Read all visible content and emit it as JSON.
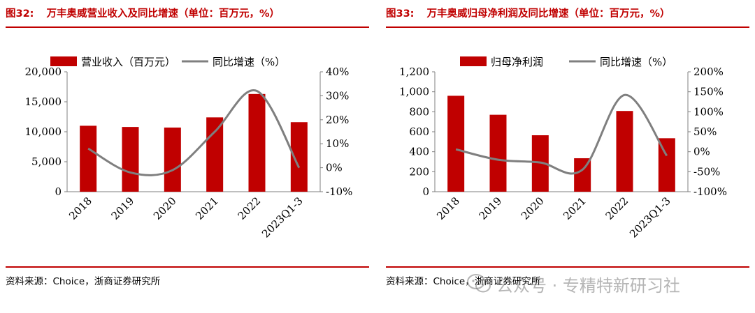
{
  "colors": {
    "bar": "#c00000",
    "line": "#7f7f7f",
    "accent": "#c00000"
  },
  "charts": [
    {
      "figure_number": "图32:",
      "figure_title": "万丰奥威营业收入及同比增速（单位：百万元，%）",
      "source": "资料来源：Choice，浙商证券研究所",
      "legend_bar": "营业收入（百万元）",
      "legend_line": "同比增速（%）",
      "left_ticks": [
        "0",
        "5,000",
        "10,000",
        "15,000",
        "20,000"
      ],
      "right_ticks": [
        "-10%",
        "0%",
        "10%",
        "20%",
        "30%",
        "40%"
      ]
    },
    {
      "figure_number": "图33:",
      "figure_title": "万丰奥威归母净利润及同比增速（单位：百万元，%）",
      "source": "资料来源：Choice，浙商证券研究所",
      "legend_bar": "归母净利润",
      "legend_line": "同比增速（%）",
      "left_ticks": [
        "0",
        "200",
        "400",
        "600",
        "800",
        "1,000",
        "1,200"
      ],
      "right_ticks": [
        "-100%",
        "-50%",
        "0%",
        "50%",
        "100%",
        "150%",
        "200%"
      ]
    }
  ],
  "chart_data": [
    {
      "type": "bar+line",
      "title": "万丰奥威营业收入及同比增速（单位：百万元，%）",
      "categories": [
        "2018",
        "2019",
        "2020",
        "2021",
        "2022",
        "2023Q1-3"
      ],
      "series": [
        {
          "name": "营业收入（百万元）",
          "type": "bar",
          "axis": "left",
          "values": [
            11000,
            10800,
            10700,
            12400,
            16300,
            11600
          ]
        },
        {
          "name": "同比增速（%）",
          "type": "line",
          "axis": "right",
          "values": [
            8,
            -2,
            -1,
            15,
            32,
            0
          ]
        }
      ],
      "ylim_left": [
        0,
        20000
      ],
      "ylim_right": [
        -10,
        40
      ]
    },
    {
      "type": "bar+line",
      "title": "万丰奥威归母净利润及同比增速（单位：百万元，%）",
      "categories": [
        "2018",
        "2019",
        "2020",
        "2021",
        "2022",
        "2023Q1-3"
      ],
      "series": [
        {
          "name": "归母净利润",
          "type": "bar",
          "axis": "left",
          "values": [
            960,
            770,
            565,
            335,
            808,
            535
          ]
        },
        {
          "name": "同比增速（%）",
          "type": "line",
          "axis": "right",
          "values": [
            6,
            -20,
            -27,
            -45,
            142,
            -10
          ]
        }
      ],
      "ylim_left": [
        0,
        1200
      ],
      "ylim_right": [
        -100,
        200
      ]
    }
  ],
  "watermark": "公众号 · 专精特新研习社"
}
